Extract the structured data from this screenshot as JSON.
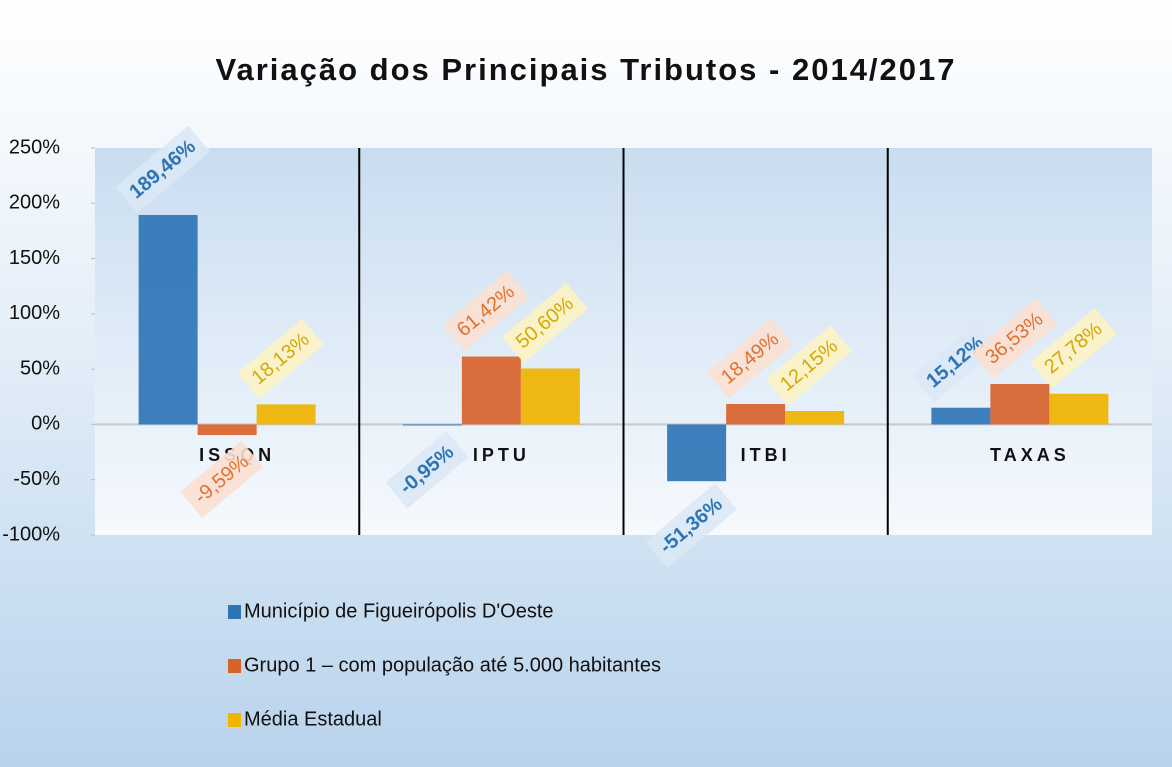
{
  "chart_data": {
    "type": "bar",
    "title": "Variação dos Principais Tributos - 2014/2017",
    "categories": [
      "ISSQN",
      "IPTU",
      "ITBI",
      "TAXAS"
    ],
    "series": [
      {
        "name": "Município de Figueirópolis D'Oeste",
        "color": "#2e75b6",
        "values": [
          189.46,
          -0.95,
          -51.36,
          15.12
        ],
        "value_labels": [
          "189,46%",
          "-0,95%",
          "-51,36%",
          "15,12%"
        ]
      },
      {
        "name": "Grupo 1 – com população até 5.000 habitantes",
        "color": "#d9622b",
        "values": [
          -9.59,
          61.42,
          18.49,
          36.53
        ],
        "value_labels": [
          "-9,59%",
          "61,42%",
          "18,49%",
          "36,53%"
        ]
      },
      {
        "name": "Média Estadual",
        "color": "#efb300",
        "values": [
          18.13,
          50.6,
          12.15,
          27.78
        ],
        "value_labels": [
          "18,13%",
          "50,60%",
          "12,15%",
          "27,78%"
        ]
      }
    ],
    "ylim": [
      -100,
      250
    ],
    "yticks": [
      {
        "value": -100,
        "label": "-100%"
      },
      {
        "value": -50,
        "label": "-50%"
      },
      {
        "value": 0,
        "label": "0%"
      },
      {
        "value": 50,
        "label": "50%"
      },
      {
        "value": 100,
        "label": "100%"
      },
      {
        "value": 150,
        "label": "150%"
      },
      {
        "value": 200,
        "label": "200%"
      },
      {
        "value": 250,
        "label": "250%"
      }
    ],
    "legend": "bottom"
  }
}
